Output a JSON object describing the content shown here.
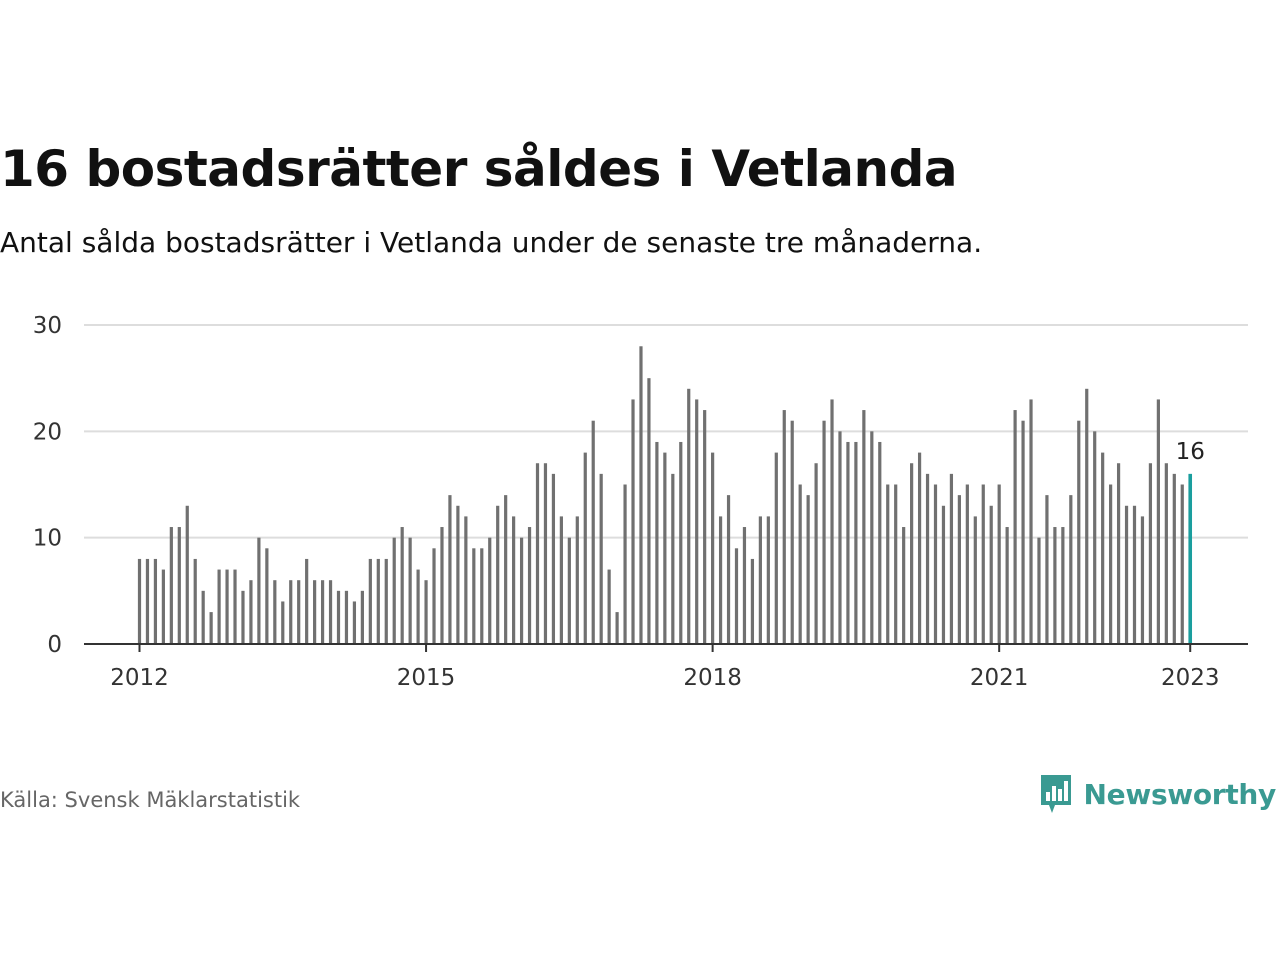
{
  "title": "16 bostadsrätter såldes i Vetlanda",
  "subtitle": "Antal sålda bostadsrätter i Vetlanda under de senaste tre månaderna.",
  "source": "Källa: Svensk Mäklarstatistik",
  "brand": {
    "name": "Newsworthy",
    "icon": "newsworthy-logo-icon"
  },
  "colors": {
    "bar": "#707070",
    "highlight": "#1a9e9e",
    "grid": "#dddddd",
    "axis": "#333333",
    "brand": "#3a9a92"
  },
  "chart_data": {
    "type": "bar",
    "x_start": "2012-01",
    "x_tick_labels": [
      "2012",
      "2015",
      "2018",
      "2021",
      "2023"
    ],
    "y_tick_labels": [
      "0",
      "10",
      "20",
      "30"
    ],
    "ylim": [
      0,
      30
    ],
    "grid": true,
    "values": [
      8,
      8,
      8,
      7,
      11,
      11,
      13,
      8,
      5,
      3,
      7,
      7,
      7,
      5,
      6,
      10,
      9,
      6,
      4,
      6,
      6,
      8,
      6,
      6,
      6,
      5,
      5,
      4,
      5,
      8,
      8,
      8,
      10,
      11,
      10,
      7,
      6,
      9,
      11,
      14,
      13,
      12,
      9,
      9,
      10,
      13,
      14,
      12,
      10,
      11,
      17,
      17,
      16,
      12,
      10,
      12,
      18,
      21,
      16,
      7,
      3,
      15,
      23,
      28,
      25,
      19,
      18,
      16,
      19,
      24,
      23,
      22,
      18,
      12,
      14,
      9,
      11,
      8,
      12,
      12,
      18,
      22,
      21,
      15,
      14,
      17,
      21,
      23,
      20,
      19,
      19,
      22,
      20,
      19,
      15,
      15,
      11,
      17,
      18,
      16,
      15,
      13,
      16,
      14,
      15,
      12,
      15,
      13,
      15,
      11,
      22,
      21,
      23,
      10,
      14,
      11,
      11,
      14,
      21,
      24,
      20,
      18,
      15,
      17,
      13,
      13,
      12,
      17,
      23,
      17,
      16,
      15,
      16
    ],
    "highlight_last": true,
    "last_value_label": "16"
  }
}
